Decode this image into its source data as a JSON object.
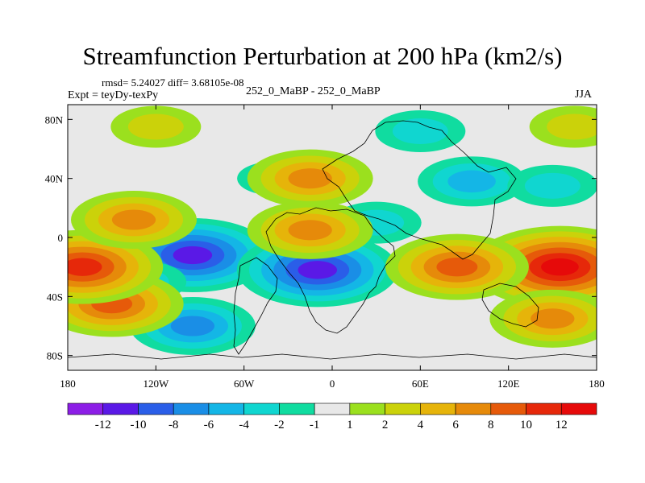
{
  "chart_data": {
    "type": "heatmap",
    "title": "Streamfunction Perturbation at 200 hPa (km2/s)",
    "stats": "rmsd= 5.24027  diff= 3.68105e-08",
    "experiment_label": "Expt = teyDy-texPy",
    "experiment_pair": "252_0_MaBP - 252_0_MaBP",
    "season": "JJA",
    "x_ticks": [
      {
        "value": -180,
        "label": "180"
      },
      {
        "value": -120,
        "label": "120W"
      },
      {
        "value": -60,
        "label": "60W"
      },
      {
        "value": 0,
        "label": "0"
      },
      {
        "value": 60,
        "label": "60E"
      },
      {
        "value": 120,
        "label": "120E"
      },
      {
        "value": 180,
        "label": "180"
      }
    ],
    "y_ticks": [
      {
        "value": 80,
        "label": "80N"
      },
      {
        "value": 40,
        "label": "40N"
      },
      {
        "value": 0,
        "label": "0"
      },
      {
        "value": -40,
        "label": "40S"
      },
      {
        "value": -80,
        "label": "80S"
      }
    ],
    "xlim": [
      -180,
      180
    ],
    "ylim": [
      -90,
      90
    ],
    "colorbar": {
      "labels": [
        "-12",
        "-10",
        "-8",
        "-6",
        "-4",
        "-2",
        "-1",
        "1",
        "2",
        "4",
        "6",
        "8",
        "10",
        "12"
      ],
      "colors": [
        "#8c1ee6",
        "#5a19e6",
        "#2a5ee8",
        "#1a8ee6",
        "#14b6e6",
        "#10d6d0",
        "#10dca0",
        "#e8e8e8",
        "#9be01e",
        "#cbd20a",
        "#e6b40a",
        "#e68a0a",
        "#e65a0a",
        "#e6280a",
        "#e60a0a"
      ]
    },
    "anomalies": [
      {
        "lon": -95,
        "lat": -12,
        "level": -12
      },
      {
        "lon": -10,
        "lat": -22,
        "level": -12
      },
      {
        "lon": -95,
        "lat": -60,
        "level": -8
      },
      {
        "lon": -130,
        "lat": -30,
        "level": -4
      },
      {
        "lon": 95,
        "lat": 38,
        "level": -6
      },
      {
        "lon": 150,
        "lat": 35,
        "level": -4
      },
      {
        "lon": 30,
        "lat": 10,
        "level": -4
      },
      {
        "lon": 60,
        "lat": 72,
        "level": -4
      },
      {
        "lon": -40,
        "lat": 40,
        "level": -2
      },
      {
        "lon": 155,
        "lat": -20,
        "level": 12
      },
      {
        "lon": 85,
        "lat": -20,
        "level": 8
      },
      {
        "lon": -150,
        "lat": -45,
        "level": 8
      },
      {
        "lon": -170,
        "lat": -20,
        "level": 10
      },
      {
        "lon": -135,
        "lat": 12,
        "level": 6
      },
      {
        "lon": -15,
        "lat": 40,
        "level": 6
      },
      {
        "lon": -15,
        "lat": 5,
        "level": 6
      },
      {
        "lon": 150,
        "lat": -55,
        "level": 6
      },
      {
        "lon": -120,
        "lat": 75,
        "level": 3
      },
      {
        "lon": 165,
        "lat": 75,
        "level": 3
      }
    ]
  }
}
